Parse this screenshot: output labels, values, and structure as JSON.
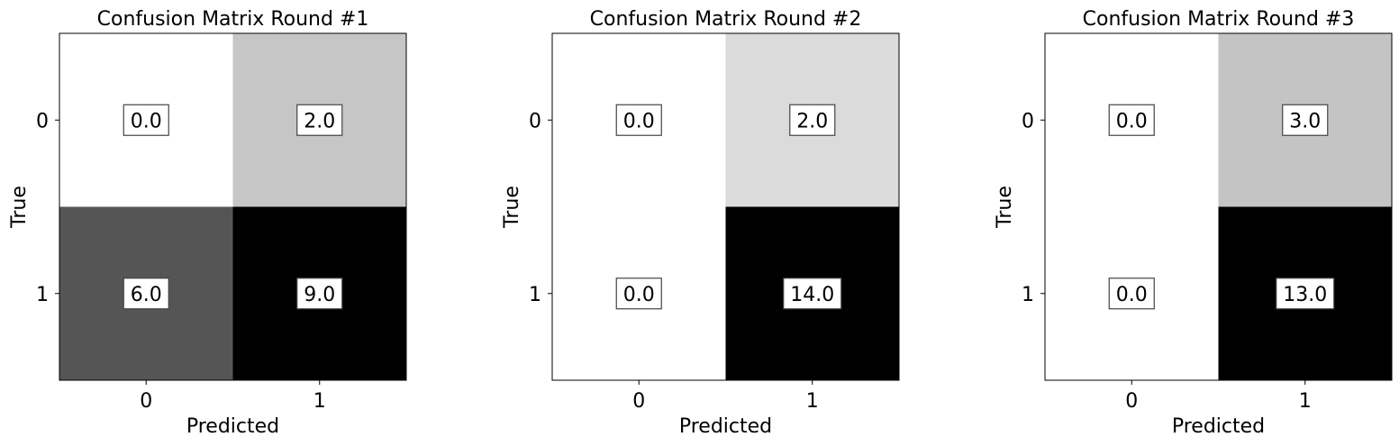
{
  "chart_data": [
    {
      "type": "heatmap",
      "title": "Confusion Matrix Round #1",
      "xlabel": "Predicted",
      "ylabel": "True",
      "x_categories": [
        "0",
        "1"
      ],
      "y_categories": [
        "0",
        "1"
      ],
      "values": [
        [
          0.0,
          2.0
        ],
        [
          6.0,
          9.0
        ]
      ],
      "cell_labels": [
        [
          "0.0",
          "2.0"
        ],
        [
          "6.0",
          "9.0"
        ]
      ],
      "colormap": "white-to-black",
      "grid": false
    },
    {
      "type": "heatmap",
      "title": "Confusion Matrix Round #2",
      "xlabel": "Predicted",
      "ylabel": "True",
      "x_categories": [
        "0",
        "1"
      ],
      "y_categories": [
        "0",
        "1"
      ],
      "values": [
        [
          0.0,
          2.0
        ],
        [
          0.0,
          14.0
        ]
      ],
      "cell_labels": [
        [
          "0.0",
          "2.0"
        ],
        [
          "0.0",
          "14.0"
        ]
      ],
      "colormap": "white-to-black",
      "grid": false
    },
    {
      "type": "heatmap",
      "title": "Confusion Matrix Round #3",
      "xlabel": "Predicted",
      "ylabel": "True",
      "x_categories": [
        "0",
        "1"
      ],
      "y_categories": [
        "0",
        "1"
      ],
      "values": [
        [
          0.0,
          3.0
        ],
        [
          0.0,
          13.0
        ]
      ],
      "cell_labels": [
        [
          "0.0",
          "3.0"
        ],
        [
          "0.0",
          "13.0"
        ]
      ],
      "colormap": "white-to-black",
      "grid": false
    }
  ]
}
